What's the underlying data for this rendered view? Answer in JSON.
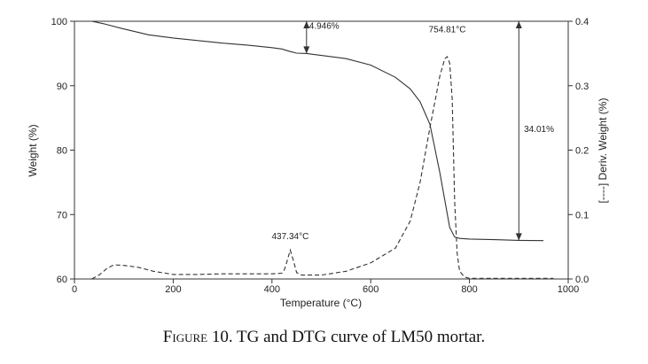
{
  "caption": {
    "label": "Figure 10.",
    "text": "TG and DTG curve of LM50 mortar."
  },
  "chart_data": {
    "type": "line",
    "xlabel": "Temperature (°C)",
    "ylabel": "Weight (%)",
    "y2label": "[----] Deriv. Weight (%)",
    "xlim": [
      0,
      1000
    ],
    "ylim": [
      60,
      100
    ],
    "y2lim": [
      0,
      0.4
    ],
    "xticks": [
      0,
      200,
      400,
      600,
      800,
      1000
    ],
    "yticks": [
      60,
      70,
      80,
      90,
      100
    ],
    "y2ticks": [
      0.0,
      0.1,
      0.2,
      0.3,
      0.4
    ],
    "grid": false,
    "series": [
      {
        "style": "solid",
        "axis": "left",
        "x": [
          35,
          60,
          100,
          150,
          200,
          250,
          300,
          350,
          400,
          420,
          437,
          450,
          470,
          500,
          550,
          600,
          650,
          680,
          700,
          720,
          740,
          760,
          770,
          780,
          800,
          850,
          900,
          950
        ],
        "y": [
          100,
          99.6,
          98.8,
          97.9,
          97.4,
          97.0,
          96.6,
          96.3,
          95.9,
          95.7,
          95.3,
          95.05,
          95.0,
          94.7,
          94.2,
          93.2,
          91.3,
          89.5,
          87.5,
          84.0,
          76.5,
          68.0,
          66.5,
          66.3,
          66.2,
          66.1,
          66.0,
          65.95
        ]
      },
      {
        "style": "dashed",
        "axis": "right",
        "x": [
          35,
          50,
          65,
          80,
          100,
          130,
          160,
          200,
          250,
          300,
          350,
          400,
          420,
          425,
          430,
          437,
          444,
          450,
          460,
          500,
          550,
          600,
          650,
          680,
          700,
          720,
          740,
          750,
          755,
          760,
          765,
          770,
          775,
          780,
          790,
          800,
          850,
          900,
          970
        ],
        "y": [
          0,
          0.006,
          0.016,
          0.022,
          0.021,
          0.018,
          0.012,
          0.007,
          0.007,
          0.008,
          0.008,
          0.008,
          0.009,
          0.014,
          0.026,
          0.045,
          0.027,
          0.01,
          0.006,
          0.006,
          0.012,
          0.025,
          0.048,
          0.09,
          0.15,
          0.235,
          0.315,
          0.342,
          0.345,
          0.335,
          0.28,
          0.12,
          0.04,
          0.012,
          0.003,
          0.001,
          0.001,
          0.001,
          0.001
        ]
      }
    ],
    "annotations": [
      {
        "text": "4.946%",
        "x": 470,
        "y": 98.8
      },
      {
        "text": "754.81°C",
        "x": 755,
        "y": 98.3
      },
      {
        "text": "34.01%",
        "x": 905,
        "y": 82.8
      },
      {
        "text": "437.34°C",
        "x": 437,
        "y": 66.2
      }
    ],
    "brackets": [
      {
        "x": 470,
        "from": 100,
        "to": 95
      },
      {
        "x": 900,
        "from": 100,
        "to": 66
      }
    ]
  }
}
